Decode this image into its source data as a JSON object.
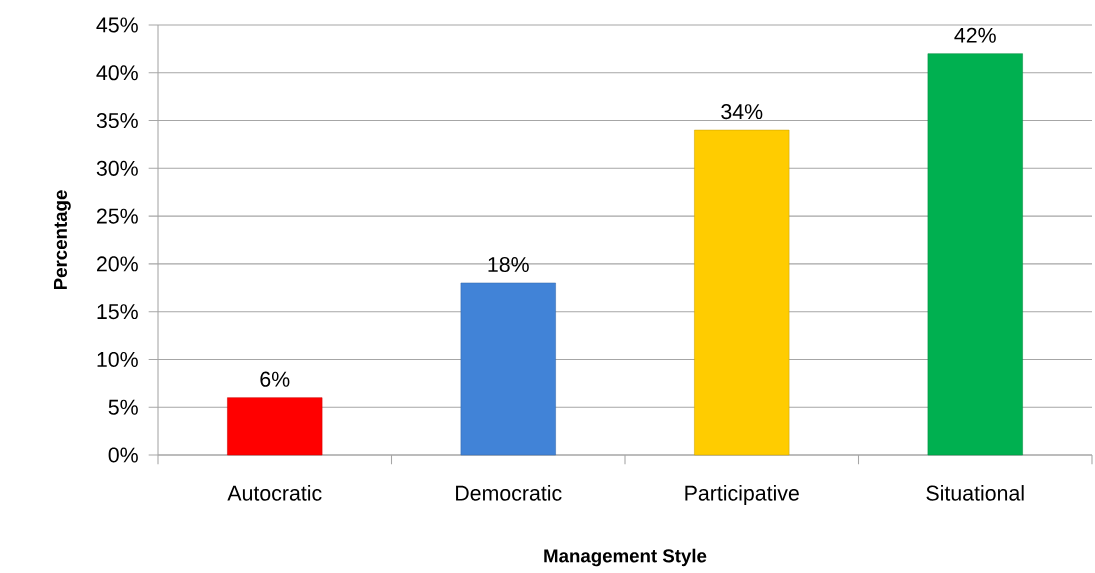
{
  "chart_data": {
    "type": "bar",
    "xlabel": "Management Style",
    "ylabel": "Percentage",
    "categories": [
      "Autocratic",
      "Democratic",
      "Participative",
      "Situational"
    ],
    "values": [
      6,
      18,
      34,
      42
    ],
    "colors": [
      "#ff0000",
      "#4183d7",
      "#ffcc00",
      "#00b050"
    ],
    "value_labels": [
      "6%",
      "18%",
      "34%",
      "42%"
    ],
    "ylim": [
      0,
      45
    ],
    "yticks": [
      {
        "value": 0,
        "label": "0%"
      },
      {
        "value": 5,
        "label": "5%"
      },
      {
        "value": 10,
        "label": "10%"
      },
      {
        "value": 15,
        "label": "15%"
      },
      {
        "value": 20,
        "label": "20%"
      },
      {
        "value": 25,
        "label": "25%"
      },
      {
        "value": 30,
        "label": "30%"
      },
      {
        "value": 35,
        "label": "35%"
      },
      {
        "value": 40,
        "label": "40%"
      },
      {
        "value": 45,
        "label": "45%"
      }
    ],
    "grid": "y"
  }
}
